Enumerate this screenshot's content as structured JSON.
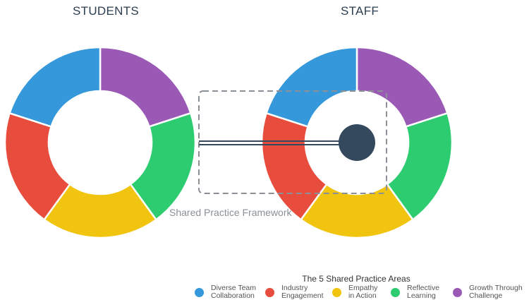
{
  "students_title": "STUDENTS",
  "staff_title": "STAFF",
  "framework_label": "Shared Practice Framework",
  "legend": {
    "title": "The 5 Shared Practice Areas",
    "items": [
      {
        "label": "Diverse Team\nCollaboration",
        "color": "#3498db"
      },
      {
        "label": "Industry\nEngagement",
        "color": "#e74c3c"
      },
      {
        "label": "Empathy\nin Action",
        "color": "#f1c40f"
      },
      {
        "label": "Reflective\nLearning",
        "color": "#2ecc71"
      },
      {
        "label": "Growth Through\nChallenge",
        "color": "#9b59b6"
      }
    ]
  },
  "segments_clockwise_from_top": [
    "Growth Through Challenge",
    "Reflective Learning",
    "Empathy in Action",
    "Industry Engagement",
    "Diverse Team Collaboration"
  ],
  "segment_colors": [
    "#9b59b6",
    "#2ecc71",
    "#f1c40f",
    "#e74c3c",
    "#3498db"
  ],
  "connector_color": "#34495e"
}
